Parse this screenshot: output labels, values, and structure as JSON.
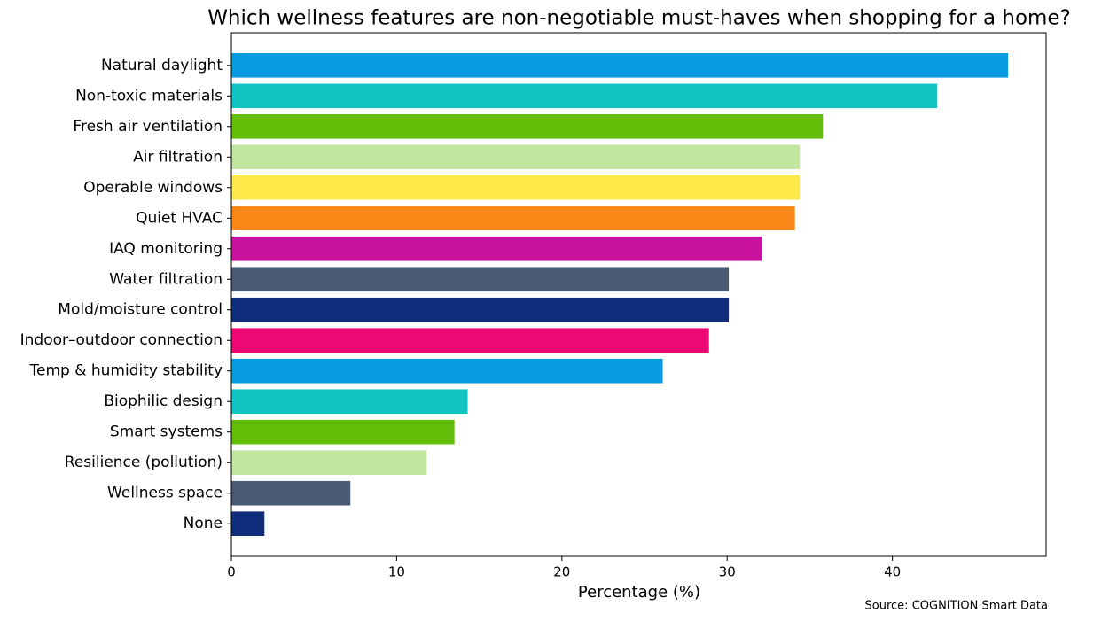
{
  "chart_data": {
    "type": "barh",
    "title": "Which wellness features are non-negotiable must-haves when shopping for a home?",
    "x_label": "Percentage (%)",
    "source": "Source: COGNITION Smart Data",
    "categories": [
      "Natural daylight",
      "Non-toxic materials",
      "Fresh air ventilation",
      "Air filtration",
      "Operable windows",
      "Quiet HVAC",
      "IAQ monitoring",
      "Water filtration",
      "Mold/moisture control",
      "Indoor–outdoor connection",
      "Temp & humidity stability",
      "Biophilic design",
      "Smart systems",
      "Resilience (pollution)",
      "Wellness space",
      "None"
    ],
    "values": [
      47.0,
      42.7,
      35.8,
      34.4,
      34.4,
      34.1,
      32.1,
      30.1,
      30.1,
      28.9,
      26.1,
      14.3,
      13.5,
      11.8,
      7.2,
      2.0
    ],
    "colors": [
      "#0a9ae2",
      "#12c4c4",
      "#62be08",
      "#c3e69f",
      "#ffe84a",
      "#f98819",
      "#c8129f",
      "#495b72",
      "#102d7b",
      "#ee0874",
      "#0a9ae2",
      "#12c4c4",
      "#62be08",
      "#c3e69f",
      "#495b72",
      "#102d7b"
    ],
    "xlim": [
      0,
      49.3
    ],
    "xticks": [
      0,
      10,
      20,
      30,
      40
    ]
  }
}
